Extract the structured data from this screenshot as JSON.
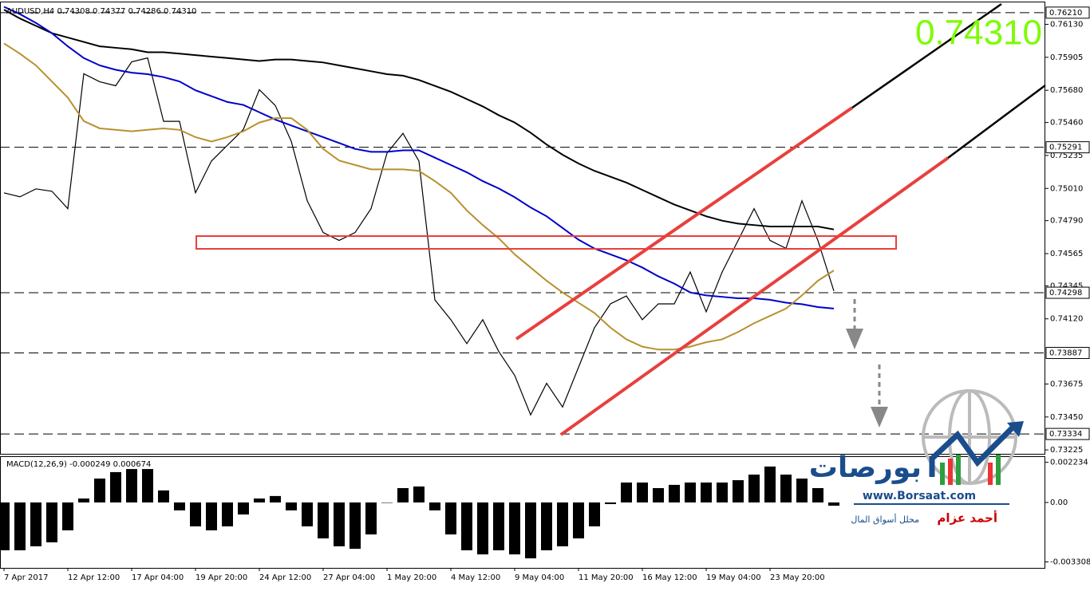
{
  "chart_data": [
    {
      "type": "line",
      "header": "AUDUSD,H4 0.74308 0.74377 0.74286 0.74310",
      "last_price_label": "0.74310",
      "ylim": [
        0.73193,
        0.7628
      ],
      "yticks": [
        {
          "value": 0.7613,
          "label": "0.76130"
        },
        0.75905,
        {
          "value": 0.7568,
          "label": "0.75680"
        },
        {
          "value": 0.7546,
          "label": "0.75460"
        },
        0.75235,
        {
          "value": 0.7501,
          "label": "0.75010"
        },
        {
          "value": 0.7479,
          "label": "0.74790"
        },
        0.74565,
        0.74345,
        {
          "value": 0.7412,
          "label": "0.74120"
        },
        0.73675,
        {
          "value": 0.7345,
          "label": "0.73450"
        },
        0.73225
      ],
      "levels": [
        {
          "value": 0.7621,
          "label": "0.76210"
        },
        {
          "value": 0.75291,
          "label": "0.75291"
        },
        {
          "value": 0.74298,
          "label": "0.74298"
        },
        {
          "value": 0.73887,
          "label": "0.73887"
        },
        {
          "value": 0.73334,
          "label": "0.73334"
        }
      ],
      "series": [
        {
          "color": "#000000",
          "values": [
            0.7498,
            0.74953,
            0.75007,
            0.74991,
            0.74872,
            0.75793,
            0.75738,
            0.75711,
            0.75874,
            0.75901,
            0.75468,
            0.75468,
            0.7498,
            0.75197,
            0.75305,
            0.75413,
            0.75684,
            0.75576,
            0.75332,
            0.74926,
            0.74709,
            0.74655,
            0.74709,
            0.74872,
            0.75251,
            0.75386,
            0.75197,
            0.74249,
            0.74114,
            0.73951,
            0.74114,
            0.73897,
            0.73734,
            0.73464,
            0.7368,
            0.73518,
            0.73789,
            0.74059,
            0.74222,
            0.74276,
            0.74114,
            0.74222,
            0.74222,
            0.74439,
            0.74168,
            0.74439,
            0.74655,
            0.74872,
            0.74655,
            0.74601,
            0.74926,
            0.74655,
            0.7431
          ]
        },
        {
          "color": "#000000",
          "values": [
            0.7623,
            0.7617,
            0.7612,
            0.7607,
            0.7604,
            0.7601,
            0.7598,
            0.7597,
            0.7596,
            0.7594,
            0.7594,
            0.7593,
            0.7592,
            0.7591,
            0.759,
            0.7589,
            0.7588,
            0.7589,
            0.7589,
            0.7588,
            0.7587,
            0.7585,
            0.7583,
            0.7581,
            0.7579,
            0.7578,
            0.7575,
            0.7571,
            0.7567,
            0.7562,
            0.7557,
            0.7551,
            0.7546,
            0.7539,
            0.7531,
            0.7524,
            0.7518,
            0.7513,
            0.7509,
            0.7505,
            0.75,
            0.7495,
            0.749,
            0.7486,
            0.7482,
            0.7479,
            0.7477,
            0.7476,
            0.7475,
            0.7475,
            0.7475,
            0.7475,
            0.7473
          ]
        },
        {
          "color": "#0000cc",
          "values": [
            0.7625,
            0.762,
            0.7614,
            0.7607,
            0.7598,
            0.759,
            0.7585,
            0.7582,
            0.758,
            0.7579,
            0.7577,
            0.7574,
            0.7568,
            0.7564,
            0.756,
            0.7558,
            0.7553,
            0.7548,
            0.7544,
            0.754,
            0.7536,
            0.7532,
            0.7528,
            0.7526,
            0.7526,
            0.7527,
            0.7527,
            0.7522,
            0.7517,
            0.7512,
            0.7506,
            0.7501,
            0.7495,
            0.7488,
            0.7482,
            0.7474,
            0.7466,
            0.746,
            0.7456,
            0.7452,
            0.7447,
            0.7441,
            0.7436,
            0.743,
            0.7428,
            0.7427,
            0.7426,
            0.7426,
            0.7425,
            0.7423,
            0.7422,
            0.742,
            0.7419
          ]
        },
        {
          "color": "#b8912f",
          "values": [
            0.76,
            0.7593,
            0.7585,
            0.7574,
            0.7563,
            0.7547,
            0.7542,
            0.7541,
            0.754,
            0.7541,
            0.7542,
            0.7541,
            0.7536,
            0.7533,
            0.7536,
            0.754,
            0.7546,
            0.7549,
            0.7549,
            0.7541,
            0.7528,
            0.752,
            0.7517,
            0.7514,
            0.7514,
            0.7514,
            0.7513,
            0.7506,
            0.7498,
            0.7486,
            0.7476,
            0.7467,
            0.7456,
            0.7447,
            0.7438,
            0.743,
            0.7423,
            0.7416,
            0.7406,
            0.7398,
            0.7393,
            0.7391,
            0.7391,
            0.7393,
            0.7396,
            0.7398,
            0.7403,
            0.7409,
            0.7414,
            0.7419,
            0.7428,
            0.7438,
            0.7445
          ]
        }
      ]
    },
    {
      "type": "bar",
      "title": "MACD(12,26,9) -0.000249 0.000674",
      "ylim": [
        -0.00364,
        0.00253
      ],
      "yticks": [
        0.002234,
        {
          "value": 0,
          "label": "0.00"
        },
        -0.003308
      ],
      "color": "#000000",
      "categories": [
        "7 Apr 2017",
        null,
        null,
        null,
        "12 Apr 12:00",
        null,
        null,
        null,
        "17 Apr 04:00",
        null,
        null,
        null,
        "19 Apr 20:00",
        null,
        null,
        null,
        "24 Apr 12:00",
        null,
        null,
        null,
        "27 Apr 04:00",
        null,
        null,
        null,
        "1 May 20:00",
        null,
        null,
        null,
        "4 May 12:00",
        null,
        null,
        null,
        "9 May 04:00",
        null,
        null,
        null,
        "11 May 20:00",
        null,
        null,
        null,
        "16 May 12:00",
        null,
        null,
        null,
        "19 May 04:00",
        null,
        null,
        null,
        "23 May 20:00",
        null,
        null,
        null,
        null
      ],
      "values": [
        -0.00266,
        -0.00266,
        -0.00244,
        -0.00222,
        -0.00155,
        0.00022,
        0.00133,
        0.00169,
        0.00186,
        0.00186,
        0.00067,
        -0.00044,
        -0.00133,
        -0.00155,
        -0.00133,
        -0.00067,
        0.00022,
        0.00036,
        -0.00044,
        -0.00133,
        -0.002,
        -0.00244,
        -0.00258,
        -0.00178,
        0,
        0.0008,
        0.00089,
        -0.00044,
        -0.00178,
        -0.00266,
        -0.00289,
        -0.00266,
        -0.00289,
        -0.00311,
        -0.00266,
        -0.00244,
        -0.002,
        -0.00133,
        -9e-05,
        0.00111,
        0.00111,
        0.0008,
        0.00098,
        0.00111,
        0.00111,
        0.00111,
        0.00124,
        0.00155,
        0.002,
        0.00155,
        0.00133,
        0.0008,
        -0.00018
      ]
    }
  ],
  "logo": {
    "name": "بورصات",
    "url": "www.Borsaat.com",
    "author": "أحمد عزام",
    "role": "محلل أسواق المال"
  }
}
